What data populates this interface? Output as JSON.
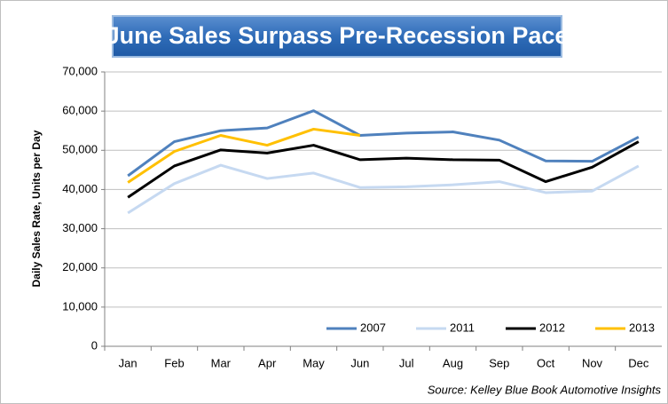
{
  "chart_data": {
    "type": "line",
    "title": "June Sales Surpass Pre-Recession Pace",
    "y_label": "Daily Sales Rate, Units per Day",
    "source": "Source: Kelley Blue Book Automotive Insights",
    "categories": [
      "Jan",
      "Feb",
      "Mar",
      "Apr",
      "May",
      "Jun",
      "Jul",
      "Aug",
      "Sep",
      "Oct",
      "Nov",
      "Dec"
    ],
    "series": [
      {
        "name": "2007",
        "color": "#4f81bd",
        "values": [
          43500,
          52200,
          55000,
          55700,
          60100,
          53800,
          54400,
          54700,
          52600,
          47300,
          47200,
          53400
        ]
      },
      {
        "name": "2011",
        "color": "#c6d9f1",
        "values": [
          34000,
          41500,
          46200,
          42800,
          44200,
          40500,
          40700,
          41200,
          42000,
          39200,
          39600,
          46000
        ]
      },
      {
        "name": "2012",
        "color": "#000000",
        "values": [
          38000,
          46000,
          50100,
          49300,
          51300,
          47600,
          48000,
          47600,
          47500,
          42000,
          45700,
          52200
        ]
      },
      {
        "name": "2013",
        "color": "#ffc000",
        "values": [
          41800,
          49700,
          53800,
          51300,
          55400,
          53800,
          null,
          null,
          null,
          null,
          null,
          null
        ]
      }
    ],
    "ylim": [
      0,
      70000
    ],
    "yticks": [
      0,
      {
        "value": 10000,
        "label": "10,000"
      },
      {
        "value": 20000,
        "label": "20,000"
      },
      {
        "value": 30000,
        "label": "30,000"
      },
      {
        "value": 40000,
        "label": "40,000"
      },
      {
        "value": 50000,
        "label": "50,000"
      },
      {
        "value": 60000,
        "label": "60,000"
      },
      {
        "value": 70000,
        "label": "70,000"
      }
    ],
    "grid": true,
    "legend": "lower right"
  }
}
